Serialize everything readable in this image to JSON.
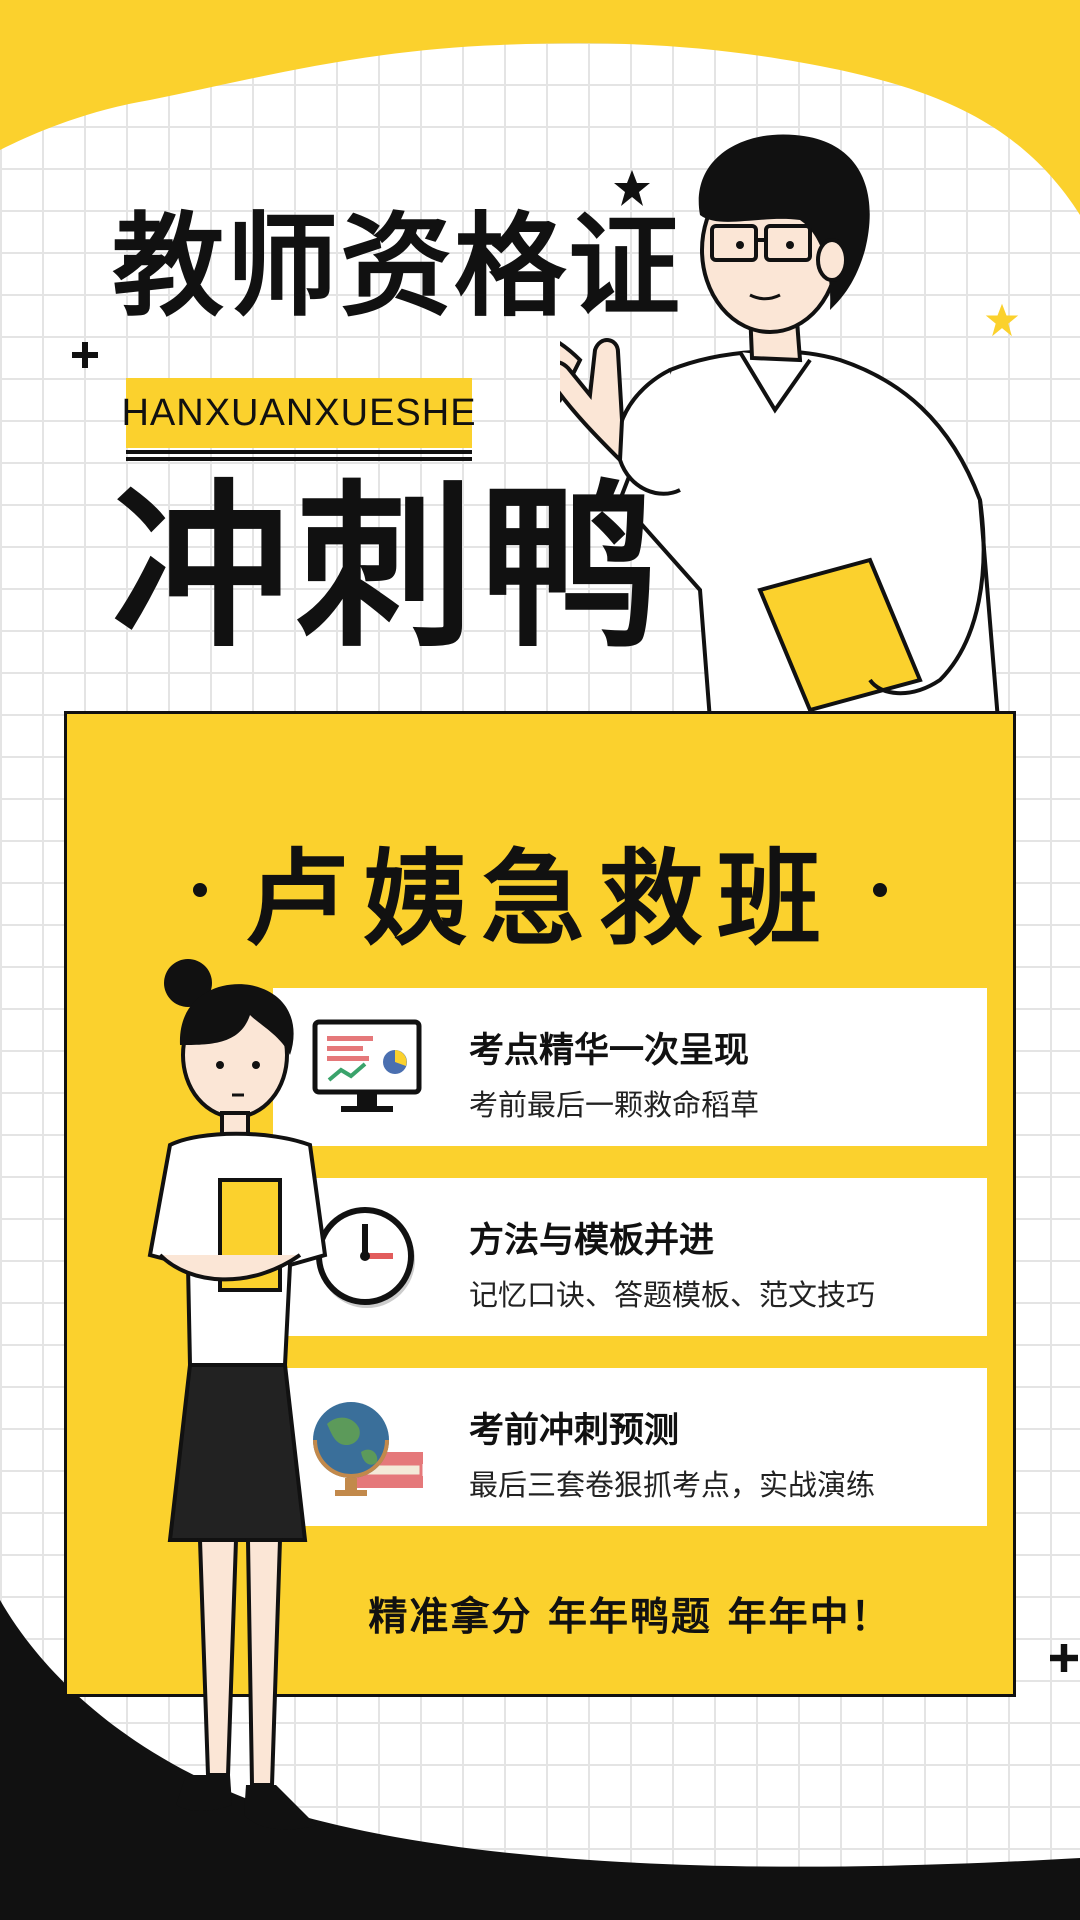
{
  "header": {
    "title": "教师资格证",
    "tag": "HANXUANXUESHE",
    "headline": "冲刺鸭"
  },
  "panel": {
    "title": "卢姨急救班",
    "features": [
      {
        "title": "考点精华一次呈现",
        "subtitle": "考前最后一颗救命稻草",
        "icon": "monitor-chart-icon"
      },
      {
        "title": "方法与模板并进",
        "subtitle": "记忆口诀、答题模板、范文技巧",
        "icon": "clock-icon"
      },
      {
        "title": "考前冲刺预测",
        "subtitle": "最后三套卷狠抓考点，实战演练",
        "icon": "globe-books-icon"
      }
    ],
    "slogan": "精准拿分 年年鸭题 年年中！"
  },
  "colors": {
    "accent": "#fbd12d",
    "ink": "#111111",
    "background": "#ffffff"
  }
}
